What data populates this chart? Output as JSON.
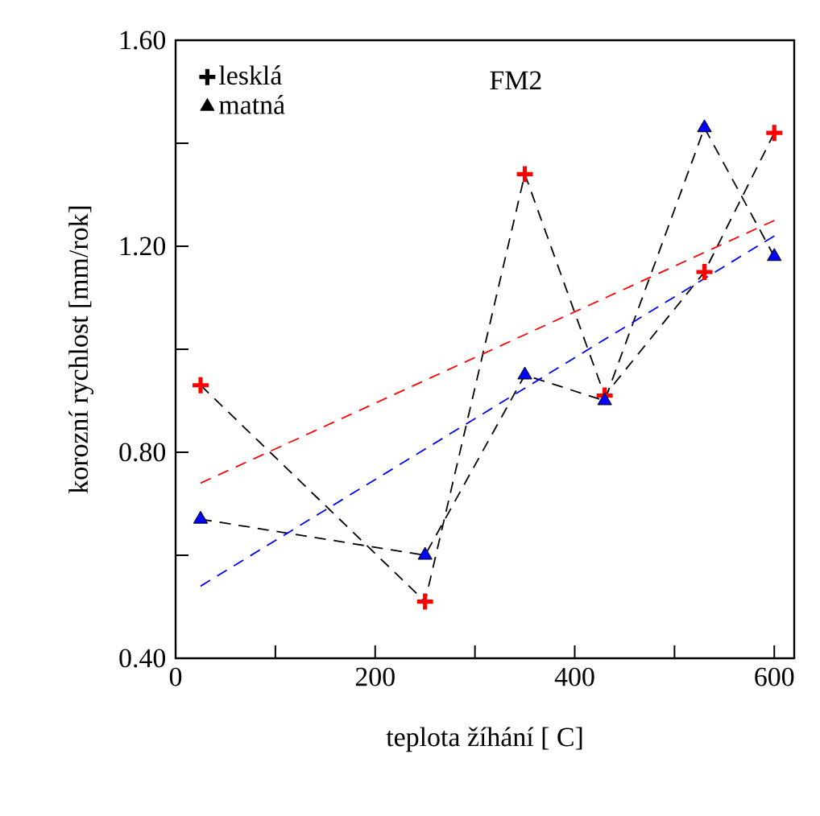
{
  "chart_data": {
    "type": "line",
    "xlabel": "teplota žíhání [ C]",
    "ylabel": "korozní rychlost [mm/rok]",
    "annotations": [
      "FM2"
    ],
    "xlim": [
      0,
      620
    ],
    "ylim": [
      0.4,
      1.6
    ],
    "xticks": [
      0,
      {
        "value": 100,
        "label": null
      },
      200,
      {
        "value": 300,
        "label": null
      },
      400,
      {
        "value": 500,
        "label": null
      },
      600
    ],
    "yticks": [
      {
        "value": 0.4,
        "label": "0.40"
      },
      {
        "value": 0.6,
        "label": null
      },
      {
        "value": 0.8,
        "label": "0.80"
      },
      {
        "value": 1.0,
        "label": null
      },
      {
        "value": 1.2,
        "label": "1.20"
      },
      {
        "value": 1.4,
        "label": null
      },
      {
        "value": 1.6,
        "label": "1.60"
      }
    ],
    "legend": "top left",
    "grid": false,
    "line_style": "dashed",
    "series": [
      {
        "name": "lesklá",
        "color": "#ff0000",
        "marker": "cross",
        "x": [
          25,
          250,
          350,
          430,
          530,
          600
        ],
        "values": [
          0.93,
          0.51,
          1.34,
          0.91,
          1.15,
          1.42
        ]
      },
      {
        "name": "matná",
        "color": "#0000ff",
        "marker": "triangle",
        "x": [
          25,
          250,
          350,
          430,
          530,
          600
        ],
        "values": [
          0.67,
          0.6,
          0.95,
          0.9,
          1.43,
          1.18
        ]
      },
      {
        "color": "#ff0000",
        "marker": "none",
        "x": [
          25,
          600
        ],
        "values": [
          0.74,
          1.25
        ]
      },
      {
        "color": "#0000ff",
        "marker": "none",
        "x": [
          25,
          600
        ],
        "values": [
          0.54,
          1.22
        ]
      }
    ]
  }
}
